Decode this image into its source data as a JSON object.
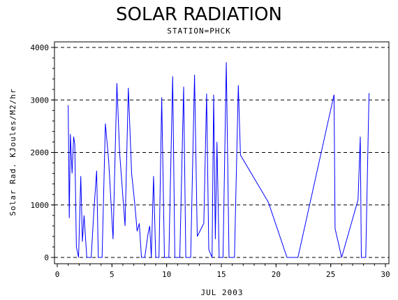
{
  "chart_data": {
    "type": "line",
    "title": "SOLAR RADIATION",
    "subtitle": "STATION=PHCK",
    "xlabel": "JUL 2003",
    "ylabel": "Solar Rad. KJoules/M2/hr",
    "xlim": [
      0,
      30
    ],
    "ylim": [
      0,
      4000
    ],
    "xticks": [
      0,
      5,
      10,
      15,
      20,
      25,
      30
    ],
    "yticks": [
      0,
      1000,
      2000,
      3000,
      4000
    ],
    "grid": "horizontal-dashed",
    "series_color": "#0000ff",
    "series": [
      {
        "values": [
          [
            1.0,
            2900
          ],
          [
            1.1,
            750
          ],
          [
            1.2,
            2350
          ],
          [
            1.35,
            1600
          ],
          [
            1.5,
            2300
          ],
          [
            1.6,
            2150
          ],
          [
            1.75,
            200
          ],
          [
            1.95,
            0
          ],
          [
            2.15,
            1550
          ],
          [
            2.3,
            300
          ],
          [
            2.45,
            800
          ],
          [
            2.7,
            0
          ],
          [
            3.1,
            0
          ],
          [
            3.35,
            900
          ],
          [
            3.6,
            1650
          ],
          [
            3.75,
            0
          ],
          [
            4.1,
            0
          ],
          [
            4.4,
            2550
          ],
          [
            4.7,
            1850
          ],
          [
            5.1,
            350
          ],
          [
            5.45,
            3320
          ],
          [
            5.7,
            2000
          ],
          [
            6.2,
            600
          ],
          [
            6.5,
            3230
          ],
          [
            6.8,
            1600
          ],
          [
            7.1,
            1000
          ],
          [
            7.3,
            500
          ],
          [
            7.5,
            650
          ],
          [
            7.7,
            0
          ],
          [
            8.0,
            0
          ],
          [
            8.3,
            450
          ],
          [
            8.45,
            600
          ],
          [
            8.6,
            0
          ],
          [
            8.8,
            1550
          ],
          [
            9.0,
            0
          ],
          [
            9.3,
            0
          ],
          [
            9.55,
            3050
          ],
          [
            9.8,
            0
          ],
          [
            10.2,
            0
          ],
          [
            10.55,
            3450
          ],
          [
            10.75,
            0
          ],
          [
            11.2,
            0
          ],
          [
            11.55,
            3250
          ],
          [
            11.75,
            0
          ],
          [
            12.2,
            0
          ],
          [
            12.55,
            3480
          ],
          [
            12.8,
            400
          ],
          [
            13.4,
            650
          ],
          [
            13.65,
            3120
          ],
          [
            13.85,
            150
          ],
          [
            14.15,
            0
          ],
          [
            14.3,
            3100
          ],
          [
            14.45,
            350
          ],
          [
            14.6,
            2200
          ],
          [
            14.8,
            0
          ],
          [
            15.15,
            0
          ],
          [
            15.45,
            3720
          ],
          [
            15.7,
            0
          ],
          [
            16.2,
            0
          ],
          [
            16.55,
            3280
          ],
          [
            16.75,
            1950
          ],
          [
            19.3,
            1050
          ],
          [
            21.0,
            0
          ],
          [
            22.0,
            0
          ],
          [
            25.3,
            3100
          ],
          [
            25.4,
            550
          ],
          [
            26.0,
            0
          ],
          [
            27.5,
            1100
          ],
          [
            27.7,
            2300
          ],
          [
            27.8,
            0
          ],
          [
            28.2,
            0
          ],
          [
            28.5,
            3130
          ]
        ]
      }
    ]
  }
}
